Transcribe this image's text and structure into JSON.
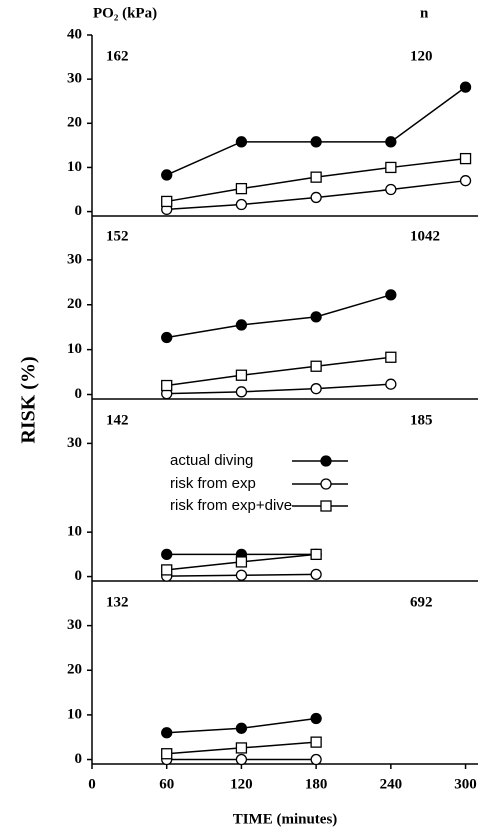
{
  "figure": {
    "xlabel": "TIME (minutes)",
    "ylabel": "RISK (%)",
    "header_left": "PO₂ (kPa)",
    "header_right": "n"
  },
  "chart_data": [
    {
      "type": "line",
      "po2": "162",
      "n": "120",
      "xlim": [
        0,
        310
      ],
      "ylim": [
        -1,
        40
      ],
      "yticks": [
        0,
        10,
        20,
        30,
        40
      ],
      "x": [
        60,
        120,
        180,
        240,
        300
      ],
      "series": [
        {
          "color": "#000000",
          "marker": "filled-circle",
          "values": [
            8.3,
            15.8,
            15.8,
            15.8,
            28.2
          ]
        },
        {
          "color": "#000000",
          "marker": "open-circle",
          "values": [
            0.5,
            1.6,
            3.2,
            5,
            7
          ]
        },
        {
          "color": "#000000",
          "marker": "open-square",
          "values": [
            2.3,
            5.2,
            7.8,
            10,
            12
          ]
        }
      ]
    },
    {
      "type": "line",
      "po2": "152",
      "n": "1042",
      "xlim": [
        0,
        310
      ],
      "ylim": [
        -1,
        40
      ],
      "yticks": [
        0,
        10,
        20,
        30
      ],
      "x": [
        60,
        120,
        180,
        240
      ],
      "series": [
        {
          "color": "#000000",
          "marker": "filled-circle",
          "values": [
            12.7,
            15.5,
            17.3,
            22.2
          ]
        },
        {
          "color": "#000000",
          "marker": "open-circle",
          "values": [
            0.2,
            0.6,
            1.3,
            2.3
          ]
        },
        {
          "color": "#000000",
          "marker": "open-square",
          "values": [
            2,
            4.3,
            6.3,
            8.3
          ]
        }
      ]
    },
    {
      "type": "line",
      "po2": "142",
      "n": "185",
      "xlim": [
        0,
        310
      ],
      "ylim": [
        -1,
        40
      ],
      "yticks": [
        0,
        10,
        30
      ],
      "legend": true,
      "x": [
        60,
        120,
        180
      ],
      "series": [
        {
          "name": "actual diving",
          "color": "#000000",
          "marker": "filled-circle",
          "values": [
            5,
            5,
            5
          ]
        },
        {
          "name": "risk from exp",
          "color": "#000000",
          "marker": "open-circle",
          "values": [
            0.1,
            0.3,
            0.5
          ]
        },
        {
          "name": "risk from exp+dive",
          "color": "#000000",
          "marker": "open-square",
          "values": [
            1.5,
            3.3,
            5
          ]
        }
      ]
    },
    {
      "type": "line",
      "po2": "132",
      "n": "692",
      "xlim": [
        0,
        310
      ],
      "ylim": [
        -1,
        40
      ],
      "yticks": [
        0,
        10,
        20,
        30
      ],
      "xticks": [
        0,
        60,
        120,
        180,
        240,
        300
      ],
      "x": [
        60,
        120,
        180
      ],
      "series": [
        {
          "color": "#000000",
          "marker": "filled-circle",
          "values": [
            6,
            7,
            9.2
          ]
        },
        {
          "color": "#000000",
          "marker": "open-circle",
          "values": [
            0,
            0,
            0
          ]
        },
        {
          "color": "#000000",
          "marker": "open-square",
          "values": [
            1.3,
            2.6,
            3.9
          ]
        }
      ]
    }
  ]
}
